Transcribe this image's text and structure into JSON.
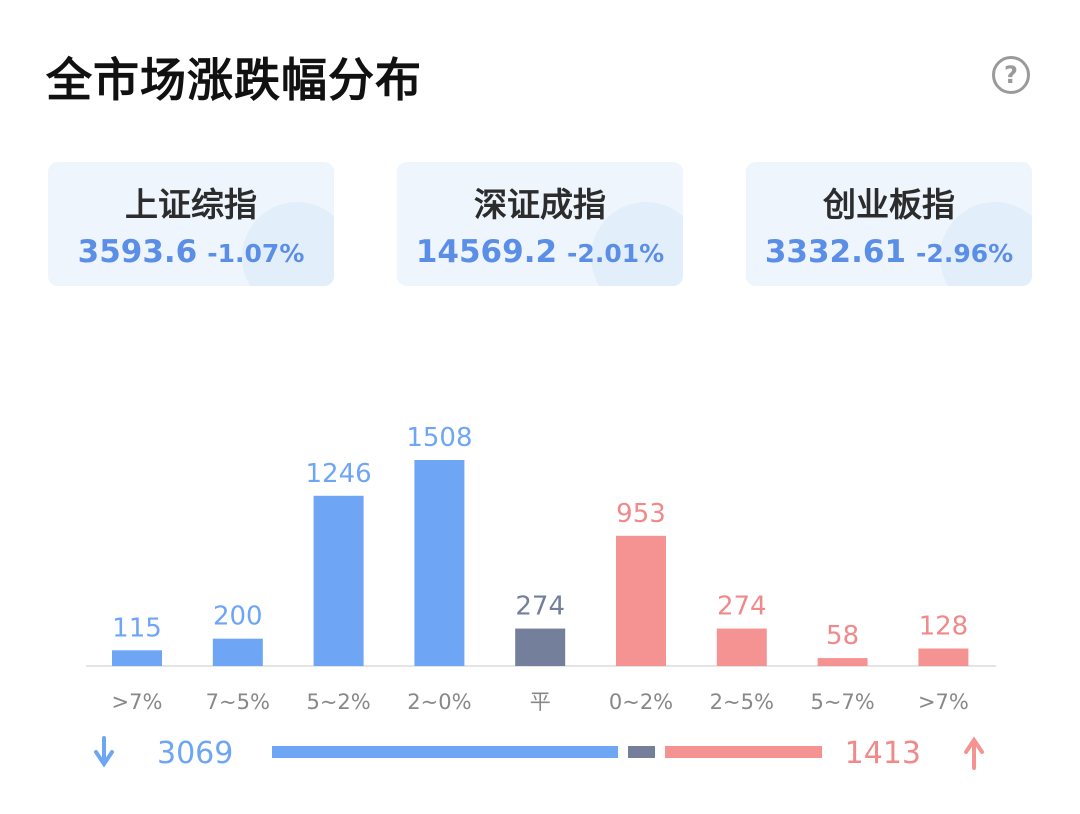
{
  "header": {
    "title": "全市场涨跌幅分布",
    "help_symbol": "?"
  },
  "indices": [
    {
      "name": "上证综指",
      "value": "3593.6",
      "change": "-1.07%"
    },
    {
      "name": "深证成指",
      "value": "14569.2",
      "change": "-2.01%"
    },
    {
      "name": "创业板指",
      "value": "3332.61",
      "change": "-2.96%"
    }
  ],
  "colors": {
    "down": "#6ea6f5",
    "flat": "#737f9b",
    "up": "#f59393",
    "axis": "#e4e4e4",
    "tick": "#888888",
    "down_text": "#6ea6f5",
    "up_text": "#f08a8a"
  },
  "chart_data": {
    "type": "bar",
    "categories": [
      ">7%",
      "7~5%",
      "5~2%",
      "2~0%",
      "平",
      "0~2%",
      "2~5%",
      "5~7%",
      ">7%"
    ],
    "values": [
      115,
      200,
      1246,
      1508,
      274,
      953,
      274,
      58,
      128
    ],
    "groups": [
      "down",
      "down",
      "down",
      "down",
      "flat",
      "up",
      "up",
      "up",
      "up"
    ],
    "ylim": [
      0,
      1508
    ],
    "grid": false,
    "summary": {
      "down_count": "3069",
      "up_count": "1413",
      "down_icon": "arrow-down-icon",
      "up_icon": "arrow-up-icon"
    }
  }
}
